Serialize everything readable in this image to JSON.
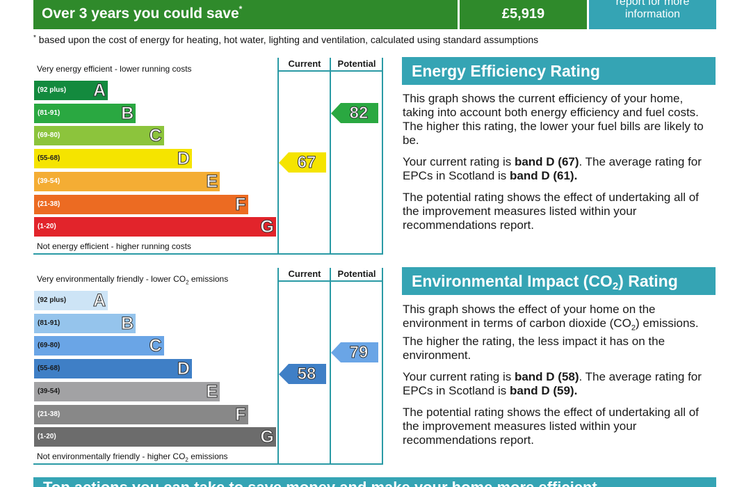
{
  "savings": {
    "label": "Over 3 years you could save",
    "asterisk": "*",
    "value": "£5,919",
    "report_text_line1": "report for more",
    "report_text_line2": "information",
    "footnote_mark": "*",
    "footnote": "based upon the cost of energy for heating, hot water, lighting and ventilation, calculated using standard assumptions"
  },
  "energy_chart": {
    "top_note": "Very energy efficient - lower running costs",
    "bottom_note": "Not energy efficient - higher running costs",
    "current_header": "Current",
    "potential_header": "Potential",
    "bands": [
      {
        "range": "(92 plus)",
        "letter": "A",
        "color": "#138a3e"
      },
      {
        "range": "(81-91)",
        "letter": "B",
        "color": "#2aa841"
      },
      {
        "range": "(69-80)",
        "letter": "C",
        "color": "#8cc43c"
      },
      {
        "range": "(55-68)",
        "letter": "D",
        "color": "#f5e400"
      },
      {
        "range": "(39-54)",
        "letter": "E",
        "color": "#f4ad34"
      },
      {
        "range": "(21-38)",
        "letter": "F",
        "color": "#ec6b22"
      },
      {
        "range": "(1-20)",
        "letter": "G",
        "color": "#e2242b"
      }
    ],
    "current": {
      "value": "67",
      "band": "D",
      "color": "#f5e400"
    },
    "potential": {
      "value": "82",
      "band": "B",
      "color": "#2aa841"
    }
  },
  "env_chart": {
    "top_note_pre": "Very environmentally friendly - lower CO",
    "top_note_sub": "2",
    "top_note_post": " emissions",
    "bottom_note_pre": "Not environmentally friendly - higher CO",
    "bottom_note_sub": "2",
    "bottom_note_post": " emissions",
    "current_header": "Current",
    "potential_header": "Potential",
    "bands": [
      {
        "range": "(92 plus)",
        "letter": "A",
        "color": "#cde4f6"
      },
      {
        "range": "(81-91)",
        "letter": "B",
        "color": "#95c4ec"
      },
      {
        "range": "(69-80)",
        "letter": "C",
        "color": "#6aa5e6"
      },
      {
        "range": "(55-68)",
        "letter": "D",
        "color": "#3f7fc6"
      },
      {
        "range": "(39-54)",
        "letter": "E",
        "color": "#a2a2a4"
      },
      {
        "range": "(21-38)",
        "letter": "F",
        "color": "#888888"
      },
      {
        "range": "(1-20)",
        "letter": "G",
        "color": "#6c6c6c"
      }
    ],
    "current": {
      "value": "58",
      "band": "D",
      "color": "#3f7fc6"
    },
    "potential": {
      "value": "79",
      "band": "C",
      "color": "#6aa5e6"
    }
  },
  "energy_panel": {
    "title": "Energy Efficiency Rating",
    "p1": "This graph shows the current efficiency of your home, taking into account both energy efficiency and fuel costs. The higher this rating, the lower your fuel bills are likely to be.",
    "p2_pre": "Your current rating is ",
    "p2_bold1": "band D (67)",
    "p2_mid": ". The average rating for EPCs in Scotland is ",
    "p2_bold2": "band D (61).",
    "p3": "The potential rating shows the effect of undertaking all of the improvement measures listed within your recommendations report."
  },
  "env_panel": {
    "title_pre": "Environmental Impact (CO",
    "title_sub": "2",
    "title_post": ") Rating",
    "p1_pre": "This graph shows the effect of your home on the environment in terms of carbon dioxide (CO",
    "p1_sub": "2",
    "p1_post": ") emissions. The higher the rating, the less impact it has on the environment.",
    "p2_pre": "Your current rating is ",
    "p2_bold1": "band D (58)",
    "p2_mid": ". The average rating for EPCs in Scotland is ",
    "p2_bold2": "band D (59).",
    "p3": "The potential rating shows the effect of undertaking all of the improvement measures listed within your recommendations report."
  },
  "bottom_strip": {
    "text": "Top actions you can take to save money and make your home more efficient"
  }
}
